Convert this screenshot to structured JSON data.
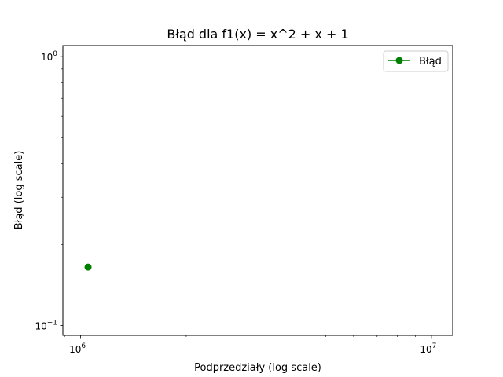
{
  "chart_data": {
    "type": "line",
    "title": "Błąd dla f1(x) = x^2 + x + 1",
    "xlabel": "Podprzedziały (log scale)",
    "ylabel": "Błąd (log scale)",
    "x_scale": "log",
    "y_scale": "log",
    "xlim": [
      890000,
      11500000
    ],
    "ylim": [
      0.092,
      1.1
    ],
    "x_ticks": [
      {
        "value": 1000000,
        "base": "10",
        "exp": "6"
      },
      {
        "value": 10000000,
        "base": "10",
        "exp": "7"
      }
    ],
    "y_ticks": [
      {
        "value": 0.1,
        "base": "10",
        "exp": "−1"
      },
      {
        "value": 1,
        "base": "10",
        "exp": "0"
      }
    ],
    "grid": false,
    "legend_position": "top-right",
    "series": [
      {
        "name": "Błąd",
        "color": "#008000",
        "marker": "circle",
        "x": [
          1050000
        ],
        "y": [
          0.165
        ]
      }
    ]
  }
}
